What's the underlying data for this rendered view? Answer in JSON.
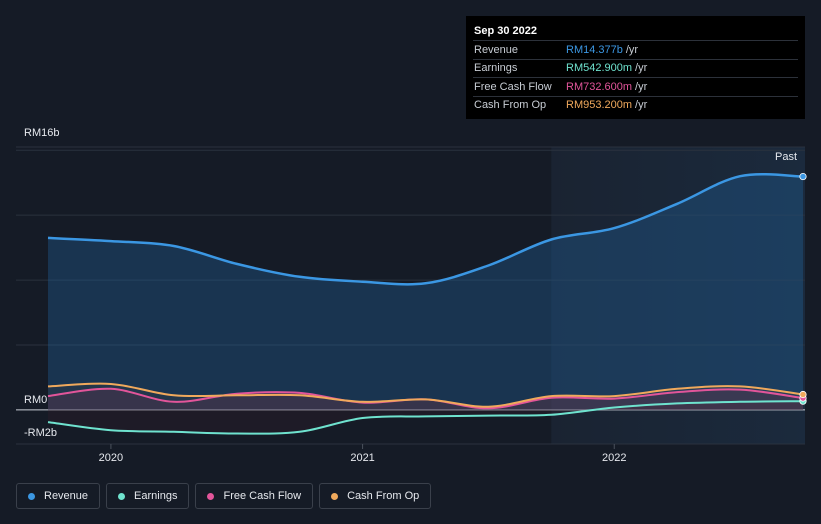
{
  "tooltip": {
    "date": "Sep 30 2022",
    "rows": [
      {
        "label": "Revenue",
        "value": "RM14.377b",
        "unit": "/yr",
        "color": "#3b97e3"
      },
      {
        "label": "Earnings",
        "value": "RM542.900m",
        "unit": "/yr",
        "color": "#6fe3cf"
      },
      {
        "label": "Free Cash Flow",
        "value": "RM732.600m",
        "unit": "/yr",
        "color": "#e2559a"
      },
      {
        "label": "Cash From Op",
        "value": "RM953.200m",
        "unit": "/yr",
        "color": "#f0a95c"
      }
    ]
  },
  "past_label": "Past",
  "legend": [
    {
      "label": "Revenue",
      "color": "#3b97e3"
    },
    {
      "label": "Earnings",
      "color": "#6fe3cf"
    },
    {
      "label": "Free Cash Flow",
      "color": "#e2559a"
    },
    {
      "label": "Cash From Op",
      "color": "#f0a95c"
    }
  ],
  "chart_data": {
    "type": "area",
    "y_unit": "RM billions",
    "y_tick_labels": [
      "RM16b",
      "RM0",
      "-RM2b"
    ],
    "y_ticks": [
      16,
      0,
      -2
    ],
    "ylim": [
      -2.1,
      16.2
    ],
    "x_tick_labels": [
      "2020",
      "2021",
      "2022"
    ],
    "x_ticks": [
      2020.0,
      2021.0,
      2022.0
    ],
    "xlim": [
      2019.75,
      2022.75
    ],
    "past_region_start": 2021.75,
    "grid": true,
    "series": [
      {
        "name": "Revenue",
        "color": "#3b97e3",
        "x": [
          2019.75,
          2020.0,
          2020.25,
          2020.5,
          2020.75,
          2021.0,
          2021.25,
          2021.5,
          2021.75,
          2022.0,
          2022.25,
          2022.5,
          2022.75
        ],
        "values": [
          10.6,
          10.4,
          10.1,
          9.0,
          8.2,
          7.9,
          7.8,
          8.9,
          10.5,
          11.2,
          12.7,
          14.4,
          14.38
        ]
      },
      {
        "name": "Earnings",
        "color": "#6fe3cf",
        "x": [
          2019.75,
          2020.0,
          2020.25,
          2020.5,
          2020.75,
          2021.0,
          2021.25,
          2021.5,
          2021.75,
          2022.0,
          2022.25,
          2022.5,
          2022.75
        ],
        "values": [
          -0.75,
          -1.25,
          -1.35,
          -1.45,
          -1.35,
          -0.5,
          -0.4,
          -0.35,
          -0.3,
          0.15,
          0.4,
          0.5,
          0.54
        ]
      },
      {
        "name": "Free Cash Flow",
        "color": "#e2559a",
        "x": [
          2019.75,
          2020.0,
          2020.25,
          2020.5,
          2020.75,
          2021.0,
          2021.25,
          2021.5,
          2021.75,
          2022.0,
          2022.25,
          2022.5,
          2022.75
        ],
        "values": [
          0.85,
          1.3,
          0.5,
          1.0,
          1.05,
          0.45,
          0.65,
          0.1,
          0.75,
          0.7,
          1.1,
          1.25,
          0.73
        ]
      },
      {
        "name": "Cash From Op",
        "color": "#f0a95c",
        "x": [
          2019.75,
          2020.0,
          2020.25,
          2020.5,
          2020.75,
          2021.0,
          2021.25,
          2021.5,
          2021.75,
          2022.0,
          2022.25,
          2022.5,
          2022.75
        ],
        "values": [
          1.45,
          1.6,
          0.9,
          0.9,
          0.9,
          0.5,
          0.65,
          0.2,
          0.85,
          0.85,
          1.3,
          1.45,
          0.95
        ]
      }
    ]
  }
}
